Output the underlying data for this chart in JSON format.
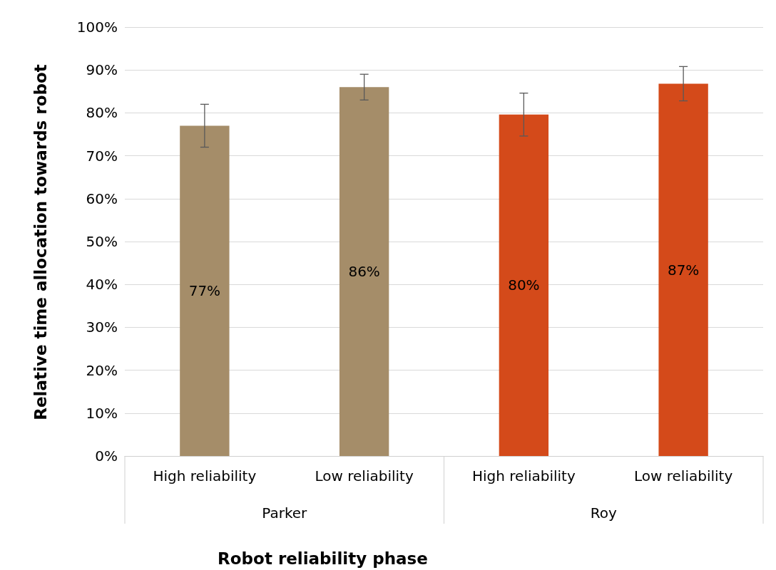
{
  "chart_data": {
    "type": "bar",
    "xlabel": "Robot reliability phase",
    "ylabel": "Relative time allocation towards robot",
    "categories": [
      "High reliability",
      "Low reliability",
      "High reliability",
      "Low reliability"
    ],
    "values": [
      77,
      86,
      79.6,
      86.8
    ],
    "colors": [
      "#a58d69",
      "#a58d69",
      "#d44a1a",
      "#d44a1a"
    ],
    "errors": [
      5,
      3,
      5,
      4
    ],
    "value_labels": [
      "77%",
      "86%",
      "80%",
      "87%"
    ],
    "annotations": [
      "Parker",
      "Roy"
    ],
    "ylim": [
      0,
      100
    ],
    "yticks": [
      {
        "value": 0,
        "label": "0%"
      },
      {
        "value": 10,
        "label": "10%"
      },
      {
        "value": 20,
        "label": "20%"
      },
      {
        "value": 30,
        "label": "30%"
      },
      {
        "value": 40,
        "label": "40%"
      },
      {
        "value": 50,
        "label": "50%"
      },
      {
        "value": 60,
        "label": "60%"
      },
      {
        "value": 70,
        "label": "70%"
      },
      {
        "value": 80,
        "label": "80%"
      },
      {
        "value": 90,
        "label": "90%"
      },
      {
        "value": 100,
        "label": "100%"
      }
    ],
    "grid": "y"
  }
}
